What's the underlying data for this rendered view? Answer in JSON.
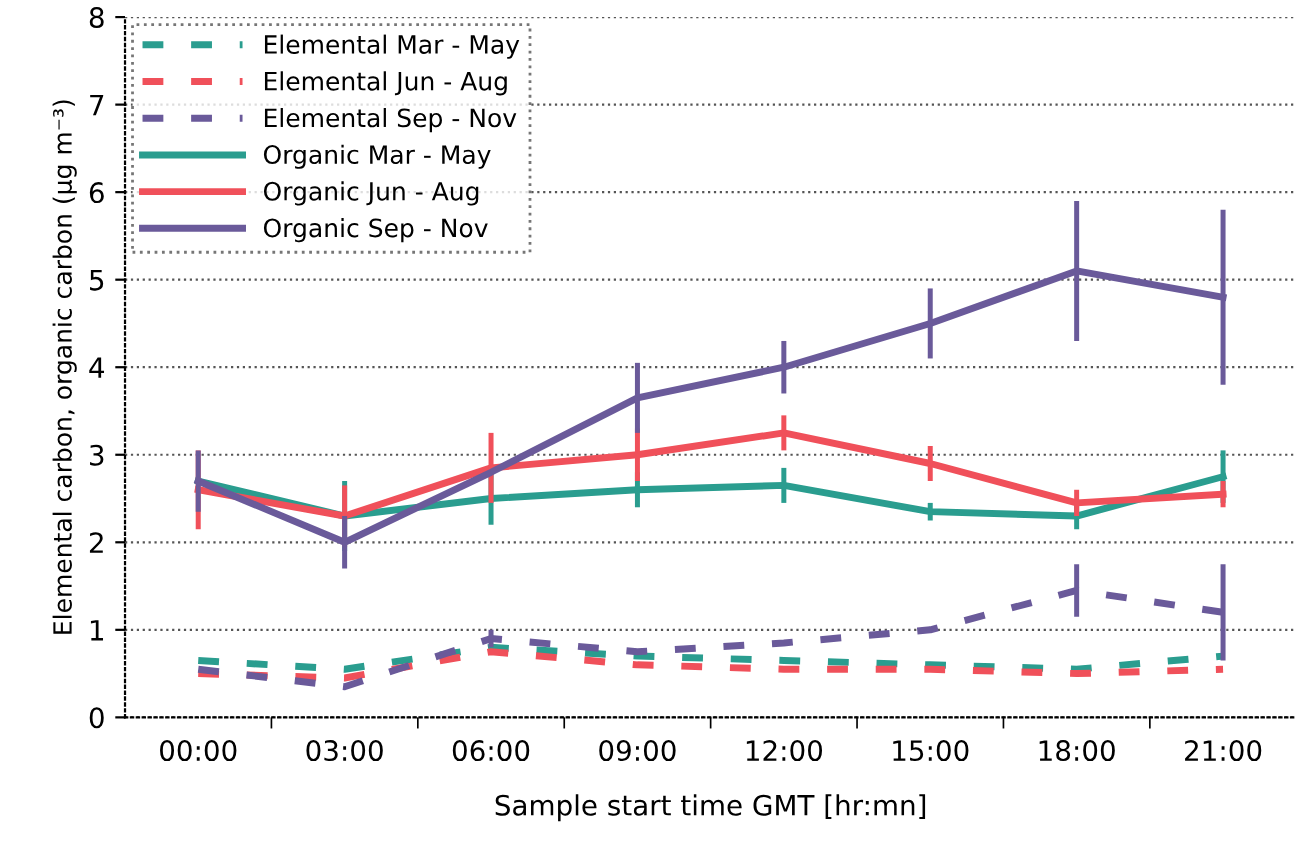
{
  "chart_data": {
    "type": "line",
    "xlabel": "Sample start time GMT [hr:mn]",
    "ylabel": "Elemental carbon, organic carbon (μg m⁻³)",
    "categories": [
      "00:00",
      "03:00",
      "06:00",
      "09:00",
      "12:00",
      "15:00",
      "18:00",
      "21:00"
    ],
    "ylim": [
      0,
      8
    ],
    "yticks": [
      0,
      1,
      2,
      3,
      4,
      5,
      6,
      7,
      8
    ],
    "grid": "y",
    "legend": "top left",
    "series": [
      {
        "name": "Elemental Mar - May",
        "color": "#2a9d8f",
        "line_style": "dashed",
        "values": [
          0.65,
          0.55,
          0.8,
          0.7,
          0.65,
          0.6,
          0.55,
          0.7
        ]
      },
      {
        "name": "Elemental Jun - Aug",
        "color": "#f0505a",
        "line_style": "dashed",
        "values": [
          0.5,
          0.45,
          0.75,
          0.6,
          0.55,
          0.55,
          0.5,
          0.55
        ]
      },
      {
        "name": "Elemental Sep - Nov",
        "color": "#6a5a9a",
        "line_style": "dashed",
        "values": [
          0.55,
          0.35,
          0.9,
          0.75,
          0.85,
          1.0,
          1.45,
          1.2
        ],
        "errors": [
          null,
          null,
          0.1,
          null,
          null,
          null,
          0.3,
          0.55
        ]
      },
      {
        "name": "Organic Mar - May",
        "color": "#2a9d8f",
        "line_style": "solid",
        "values": [
          2.7,
          2.3,
          2.5,
          2.6,
          2.65,
          2.35,
          2.3,
          2.75
        ],
        "errors": [
          null,
          0.4,
          0.3,
          0.2,
          0.2,
          0.1,
          0.15,
          0.3
        ]
      },
      {
        "name": "Organic Jun - Aug",
        "color": "#f0505a",
        "line_style": "solid",
        "values": [
          2.6,
          2.3,
          2.85,
          3.0,
          3.25,
          2.9,
          2.45,
          2.55
        ],
        "errors": [
          0.45,
          0.35,
          0.4,
          0.3,
          0.2,
          0.2,
          0.15,
          0.15
        ]
      },
      {
        "name": "Organic Sep - Nov",
        "color": "#6a5a9a",
        "line_style": "solid",
        "values": [
          2.7,
          2.0,
          2.8,
          3.65,
          4.0,
          4.5,
          5.1,
          4.8
        ],
        "errors": [
          0.35,
          0.3,
          null,
          0.4,
          0.3,
          0.4,
          0.8,
          1.0
        ]
      }
    ]
  }
}
